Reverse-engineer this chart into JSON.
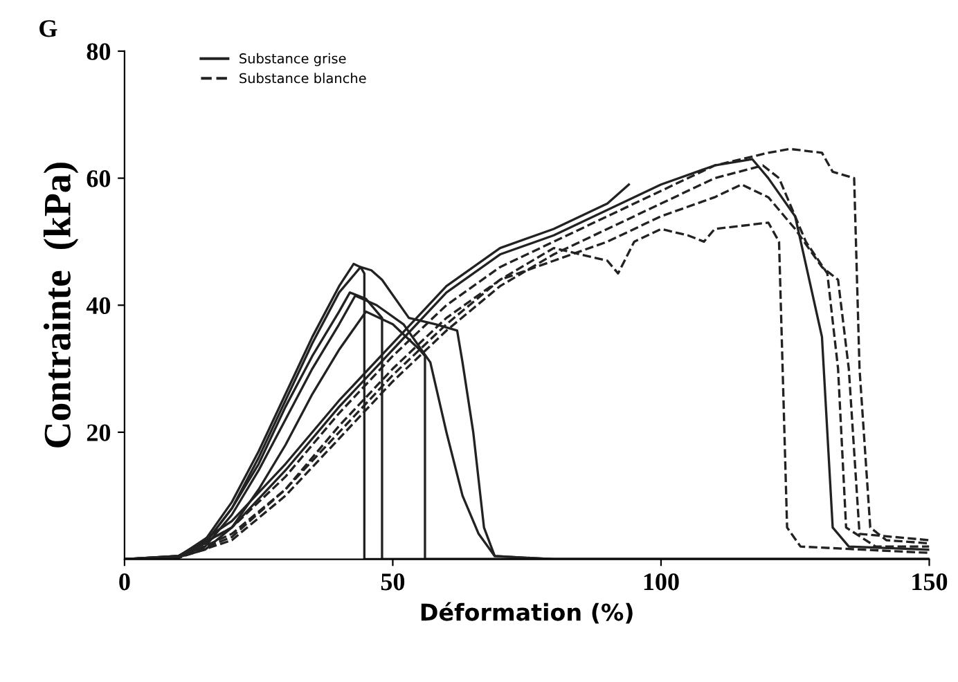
{
  "chart_data": {
    "type": "line",
    "xlabel": "Déformation (%)",
    "ylabel": "Contrainte  (kPa)",
    "annotations": [
      "G"
    ],
    "xlim": [
      0,
      150
    ],
    "xticks": [
      0,
      50,
      100,
      150
    ],
    "ylim": [
      0,
      80
    ],
    "yticks": [
      20,
      40,
      60,
      80
    ],
    "grid": false,
    "legend": "top left",
    "series": [
      {
        "name": "Substance grise",
        "color": "#222222",
        "line_style": "solid",
        "x": [
          0,
          10,
          15,
          20,
          25,
          30,
          35,
          40,
          42.7,
          44,
          44.7,
          44.7,
          60,
          100,
          150
        ],
        "values": [
          0,
          0.5,
          3,
          9,
          17,
          26,
          35,
          43,
          46.5,
          46,
          45,
          0,
          0,
          0,
          0
        ]
      },
      {
        "color": "#222222",
        "line_style": "solid",
        "x": [
          0,
          10,
          15,
          20,
          25,
          30,
          35,
          40,
          44,
          46,
          48,
          53,
          58,
          62,
          63,
          65,
          67,
          69,
          80,
          150
        ],
        "values": [
          0,
          0.5,
          2.5,
          8,
          16,
          25,
          34,
          42,
          46,
          45.5,
          44,
          38,
          37,
          36,
          31,
          20,
          5,
          0.5,
          0,
          0
        ]
      },
      {
        "color": "#222222",
        "line_style": "solid",
        "x": [
          0,
          10,
          15,
          20,
          25,
          30,
          35,
          40,
          42,
          45,
          47,
          48,
          48,
          100,
          150
        ],
        "values": [
          0,
          0.5,
          2.5,
          8,
          15,
          24,
          32,
          39,
          42,
          41,
          39,
          38,
          0,
          0,
          0
        ]
      },
      {
        "color": "#222222",
        "line_style": "solid",
        "x": [
          0,
          10,
          15,
          20,
          25,
          30,
          35,
          40,
          43,
          47,
          52,
          57,
          60,
          63,
          66,
          69,
          80,
          150
        ],
        "values": [
          0,
          0.4,
          2,
          7,
          14,
          22,
          30,
          37,
          41.5,
          40,
          37,
          31,
          20,
          10,
          4,
          0.5,
          0,
          0
        ]
      },
      {
        "color": "#222222",
        "line_style": "solid",
        "x": [
          0,
          10,
          15,
          20,
          25,
          30,
          35,
          40,
          45,
          50,
          55,
          56,
          56,
          100,
          150
        ],
        "values": [
          0,
          0.3,
          1.5,
          5,
          11,
          18,
          26,
          33,
          39,
          37,
          33,
          32,
          0,
          0,
          0
        ]
      },
      {
        "name": "Substance blanche",
        "color": "#222222",
        "line_style": "dashed",
        "x": [
          0,
          10,
          20,
          30,
          40,
          50,
          60,
          70,
          80,
          90,
          100,
          110,
          120,
          124,
          130,
          132,
          136,
          137,
          139,
          142,
          150
        ],
        "values": [
          0,
          0.3,
          5,
          13,
          23,
          32,
          40,
          46,
          50,
          54,
          58,
          62,
          64,
          64.6,
          64,
          61,
          60,
          30,
          5,
          3,
          2.5
        ]
      },
      {
        "color": "#222222",
        "line_style": "dashed",
        "x": [
          0,
          10,
          20,
          30,
          40,
          50,
          60,
          70,
          80,
          90,
          92,
          95,
          100,
          105,
          108,
          110,
          120,
          122,
          123.5,
          126,
          150
        ],
        "values": [
          0,
          0.2,
          4,
          11,
          20,
          29,
          37,
          44,
          49,
          47,
          45,
          50,
          52,
          51,
          50,
          52,
          53,
          50,
          5,
          2,
          1
        ]
      },
      {
        "color": "#222222",
        "line_style": "solid",
        "x": [
          0,
          10,
          20,
          30,
          40,
          50,
          60,
          70,
          80,
          90,
          100,
          110,
          117,
          120,
          125,
          130,
          132,
          135,
          150
        ],
        "values": [
          0,
          0.3,
          5,
          14,
          24,
          33,
          42,
          48,
          51,
          55,
          59,
          62,
          63,
          60,
          54,
          35,
          5,
          2,
          1.5
        ]
      },
      {
        "color": "#222222",
        "line_style": "dashed",
        "x": [
          0,
          10,
          20,
          30,
          40,
          50,
          60,
          70,
          80,
          90,
          100,
          110,
          119,
          122,
          127,
          131,
          133,
          134.5,
          140,
          150
        ],
        "values": [
          0,
          0.2,
          3,
          10,
          19,
          28,
          36,
          43,
          48,
          52,
          56,
          60,
          62,
          60,
          50,
          45,
          30,
          5,
          2,
          2
        ]
      },
      {
        "color": "#222222",
        "line_style": "dashed",
        "x": [
          0,
          10,
          20,
          30,
          40,
          50,
          60,
          70,
          80,
          90,
          100,
          110,
          115,
          120,
          125,
          130,
          133,
          135,
          137,
          150
        ],
        "values": [
          0,
          0.2,
          3.5,
          11,
          21,
          30,
          38,
          44,
          47,
          50,
          54,
          57,
          59,
          57,
          52,
          46,
          44,
          30,
          4,
          3
        ]
      },
      {
        "color": "#222222",
        "line_style": "solid",
        "x": [
          0,
          10,
          20,
          30,
          40,
          50,
          60,
          70,
          80,
          90,
          94
        ],
        "values": [
          0,
          0.4,
          6,
          15,
          25,
          34,
          43,
          49,
          52,
          56,
          59
        ]
      }
    ]
  }
}
